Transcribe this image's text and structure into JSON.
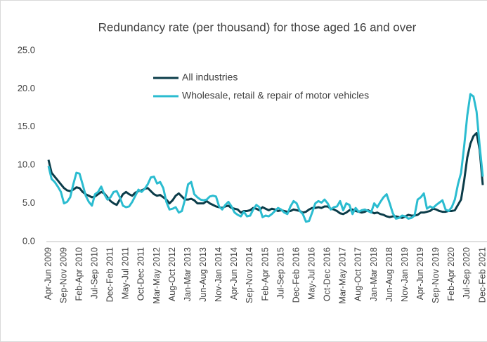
{
  "chart_data": {
    "type": "line",
    "title": "Redundancy rate (per thousand) for those aged 16 and over",
    "categories": [
      "Apr-Jun 2009",
      null,
      null,
      null,
      null,
      "Sep-Nov 2009",
      null,
      null,
      null,
      null,
      "Feb-Apr 2010",
      null,
      null,
      null,
      null,
      "Jul-Sep 2010",
      null,
      null,
      null,
      null,
      "Dec-Feb 2011",
      null,
      null,
      null,
      null,
      "May-Jul 2011",
      null,
      null,
      null,
      null,
      "Oct-Dec 2011",
      null,
      null,
      null,
      null,
      "Mar-May 2012",
      null,
      null,
      null,
      null,
      "Aug-Oct 2012",
      null,
      null,
      null,
      null,
      "Jan-Mar 2013",
      null,
      null,
      null,
      null,
      "Jun-Aug 2013",
      null,
      null,
      null,
      null,
      "Nov-Jan 2014",
      null,
      null,
      null,
      null,
      "Apr-Jun 2014",
      null,
      null,
      null,
      null,
      "Sep-Nov 2014",
      null,
      null,
      null,
      null,
      "Feb-Apr 2015",
      null,
      null,
      null,
      null,
      "Jul-Sep 2015",
      null,
      null,
      null,
      null,
      "Dec-Feb 2016",
      null,
      null,
      null,
      null,
      "May-Jul 2016",
      null,
      null,
      null,
      null,
      "Oct-Dec 2016",
      null,
      null,
      null,
      null,
      "Mar-May 2017",
      null,
      null,
      null,
      null,
      "Aug-Oct 2017",
      null,
      null,
      null,
      null,
      "Jan-Mar 2018",
      null,
      null,
      null,
      null,
      "Jun-Aug 2018",
      null,
      null,
      null,
      null,
      "Nov-Jan 2019",
      null,
      null,
      null,
      null,
      "Apr-Jun 2019",
      null,
      null,
      null,
      null,
      "Sep-Nov 2019",
      null,
      null,
      null,
      null,
      "Feb-Apr 2020",
      null,
      null,
      null,
      null,
      "Jul-Sep 2020",
      null,
      null,
      null,
      null,
      "Dec-Feb 2021"
    ],
    "series": [
      {
        "name": "All industries",
        "color": "#0b3c49",
        "values": [
          10.7,
          9.0,
          8.5,
          8.0,
          7.5,
          7.0,
          6.7,
          6.6,
          6.8,
          7.1,
          7.0,
          6.5,
          6.2,
          6.0,
          5.8,
          5.9,
          6.2,
          6.5,
          6.3,
          5.8,
          5.3,
          5.0,
          4.8,
          5.5,
          6.2,
          6.5,
          6.2,
          6.0,
          6.4,
          6.6,
          6.7,
          6.9,
          7.0,
          6.6,
          6.2,
          6.0,
          6.1,
          5.8,
          5.5,
          5.0,
          5.4,
          6.0,
          6.3,
          5.9,
          5.5,
          5.5,
          5.6,
          5.4,
          5.0,
          5.0,
          5.0,
          5.3,
          5.0,
          4.8,
          4.6,
          4.5,
          4.4,
          4.6,
          4.7,
          4.4,
          4.3,
          4.2,
          3.8,
          4.0,
          4.0,
          4.1,
          4.4,
          4.3,
          4.1,
          4.5,
          4.3,
          4.1,
          4.3,
          4.2,
          4.0,
          4.1,
          4.0,
          3.9,
          4.0,
          4.2,
          4.1,
          4.0,
          3.8,
          3.9,
          4.2,
          4.4,
          4.4,
          4.5,
          4.4,
          4.6,
          4.6,
          4.3,
          4.2,
          4.0,
          3.7,
          3.6,
          3.8,
          4.1,
          4.2,
          4.0,
          3.9,
          3.8,
          3.9,
          4.1,
          3.9,
          3.7,
          3.8,
          3.6,
          3.5,
          3.3,
          3.2,
          3.3,
          3.3,
          3.2,
          3.1,
          3.3,
          3.5,
          3.4,
          3.4,
          3.5,
          3.8,
          3.8,
          3.9,
          4.0,
          4.3,
          4.2,
          4.0,
          3.9,
          3.9,
          4.0,
          4.0,
          4.1,
          4.8,
          5.5,
          8.0,
          11.0,
          12.8,
          13.8,
          14.2,
          12.0,
          7.4
        ]
      },
      {
        "name": "Wholesale, retail & repair of motor vehicles",
        "color": "#2bbcd0",
        "values": [
          9.9,
          8.2,
          7.8,
          7.2,
          6.5,
          5.0,
          5.2,
          5.8,
          7.5,
          9.0,
          8.9,
          7.5,
          6.0,
          5.2,
          4.7,
          6.2,
          6.5,
          7.2,
          6.2,
          5.5,
          5.8,
          6.5,
          6.6,
          5.8,
          4.7,
          4.5,
          4.6,
          5.2,
          6.0,
          6.8,
          6.5,
          6.9,
          7.5,
          8.4,
          8.5,
          7.6,
          7.8,
          7.0,
          5.2,
          4.2,
          4.3,
          4.5,
          3.8,
          4.0,
          5.5,
          7.5,
          7.8,
          6.2,
          5.8,
          5.5,
          5.4,
          5.5,
          5.9,
          6.0,
          5.9,
          4.6,
          4.2,
          4.8,
          5.2,
          4.6,
          3.8,
          3.5,
          3.3,
          3.9,
          3.3,
          3.4,
          4.2,
          4.8,
          4.5,
          3.2,
          3.4,
          3.3,
          3.6,
          4.0,
          4.4,
          4.2,
          3.8,
          3.6,
          4.6,
          5.3,
          5.0,
          4.0,
          3.6,
          2.6,
          2.7,
          3.8,
          5.0,
          5.3,
          5.1,
          5.5,
          5.0,
          4.2,
          4.5,
          4.6,
          5.3,
          4.1,
          5.0,
          4.8,
          3.6,
          4.4,
          3.9,
          4.1,
          4.2,
          4.0,
          3.8,
          5.0,
          4.5,
          5.2,
          5.8,
          6.2,
          5.0,
          3.7,
          3.0,
          3.1,
          3.4,
          3.3,
          3.0,
          3.1,
          3.4,
          5.5,
          5.8,
          6.3,
          4.3,
          4.6,
          4.4,
          4.8,
          5.1,
          5.4,
          4.2,
          4.0,
          4.5,
          5.5,
          7.5,
          9.0,
          12.5,
          16.5,
          19.3,
          19.0,
          17.0,
          12.5,
          8.5
        ]
      }
    ],
    "ylim": [
      0,
      25
    ],
    "yticks": [
      {
        "value": 0,
        "label": "0.0"
      },
      {
        "value": 5,
        "label": "5.0"
      },
      {
        "value": 10,
        "label": "10.0"
      },
      {
        "value": 15,
        "label": "15.0"
      },
      {
        "value": 20,
        "label": "20.0"
      },
      {
        "value": 25,
        "label": "25.0"
      }
    ],
    "grid": false,
    "legend": "top"
  }
}
